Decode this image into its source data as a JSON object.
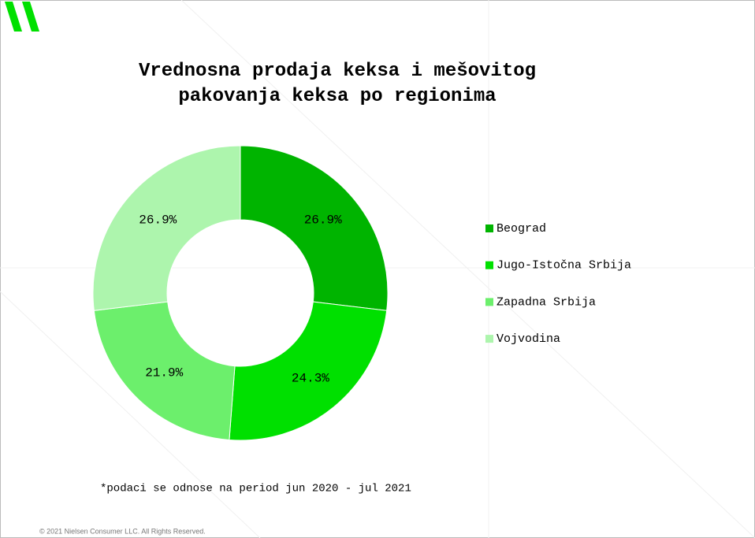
{
  "chart_data": {
    "type": "donut",
    "title": "Vrednosna prodaja keksa i mešovitog pakovanja keksa po regionima",
    "categories": [
      "Beograd",
      "Jugo-Istočna Srbija",
      "Zapadna Srbija",
      "Vojvodina"
    ],
    "values": [
      26.9,
      24.3,
      21.9,
      26.9
    ],
    "value_labels": [
      "26.9%",
      "24.3%",
      "21.9%",
      "26.9%"
    ],
    "colors": [
      "#00b400",
      "#00e000",
      "#6cef6c",
      "#adf5ad"
    ],
    "legend": "right",
    "footnote": "*podaci se odnose na period  jun 2020 - jul 2021"
  },
  "copyright": "© 2021 Nielsen Consumer LLC. All Rights Reserved."
}
